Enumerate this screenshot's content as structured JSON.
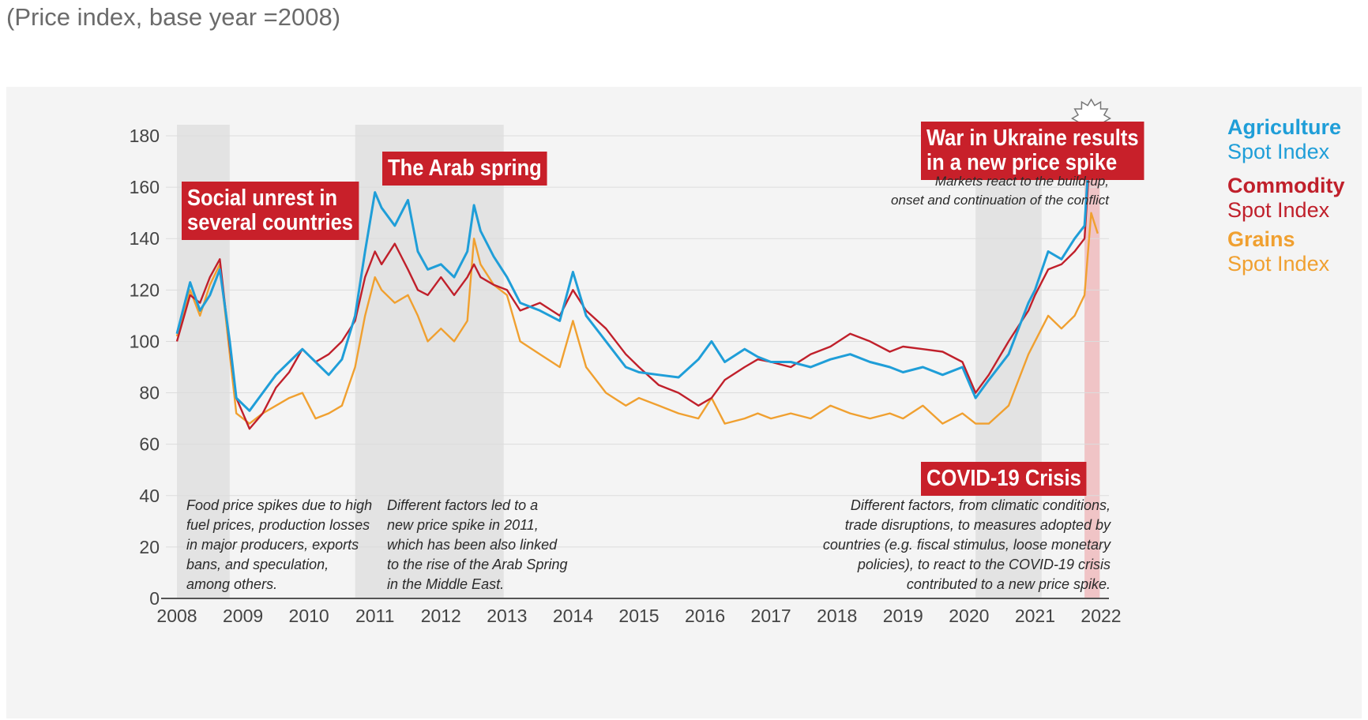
{
  "subtitle": "(Price index, base year =2008)",
  "colors": {
    "agriculture": "#1f9ed8",
    "commodity": "#c0202b",
    "grains": "#f0a030",
    "shade": "#e3e3e3",
    "war_shade": "#f0c4c6"
  },
  "boxes": {
    "social": "Social unrest in\nseveral countries",
    "arab": "The Arab spring",
    "war": "War in Ukraine results\nin a new price spike",
    "covid": "COVID-19 Crisis"
  },
  "notes": {
    "food": "Food price spikes due to high\nfuel prices, production losses\nin major producers, exports\nbans, and speculation,\namong others.",
    "arab": "Different factors led to a\nnew price spike in 2011,\nwhich has been also linked\nto the rise of the Arab Spring\nin the Middle East.",
    "war": "Markets react to the build-up,\nonset and continuation of the conflict",
    "covid": "Different factors, from climatic conditions,\ntrade disruptions, to measures adopted by\ncountries (e.g. fiscal stimulus, loose monetary\npolicies), to react to the COVID-19 crisis\ncontributed to a new price spike."
  },
  "legend": {
    "agriculture": [
      "Agriculture",
      "Spot Index"
    ],
    "commodity": [
      "Commodity",
      "Spot Index"
    ],
    "grains": [
      "Grains",
      "Spot Index"
    ]
  },
  "chart_data": {
    "type": "line",
    "title": "",
    "xlabel": "",
    "ylabel": "",
    "ylim": [
      0,
      180
    ],
    "yticks": [
      0,
      20,
      40,
      60,
      80,
      100,
      120,
      140,
      160,
      180
    ],
    "xticks": [
      "2008",
      "2009",
      "2010",
      "2011",
      "2012",
      "2013",
      "2014",
      "2015",
      "2016",
      "2017",
      "2018",
      "2019",
      "2020",
      "2021",
      "2022"
    ],
    "grid": "horizontal",
    "legend_position": "right",
    "shaded_periods": [
      {
        "label": "Social unrest in several countries",
        "start": 2008.0,
        "end": 2008.8
      },
      {
        "label": "The Arab spring",
        "start": 2010.7,
        "end": 2012.95
      },
      {
        "label": "COVID-19 Crisis",
        "start": 2020.1,
        "end": 2021.1
      },
      {
        "label": "War in Ukraine results in a new price spike",
        "start": 2021.75,
        "end": 2021.98
      }
    ],
    "series": [
      {
        "name": "Agriculture Spot Index",
        "x": [
          2008.0,
          2008.2,
          2008.35,
          2008.5,
          2008.65,
          2008.8,
          2008.9,
          2009.1,
          2009.3,
          2009.5,
          2009.7,
          2009.9,
          2010.1,
          2010.3,
          2010.5,
          2010.7,
          2010.85,
          2011.0,
          2011.1,
          2011.3,
          2011.5,
          2011.65,
          2011.8,
          2012.0,
          2012.2,
          2012.4,
          2012.5,
          2012.6,
          2012.8,
          2013.0,
          2013.2,
          2013.5,
          2013.8,
          2014.0,
          2014.2,
          2014.5,
          2014.8,
          2015.0,
          2015.3,
          2015.6,
          2015.9,
          2016.1,
          2016.3,
          2016.6,
          2016.8,
          2017.0,
          2017.3,
          2017.6,
          2017.9,
          2018.2,
          2018.5,
          2018.8,
          2019.0,
          2019.3,
          2019.6,
          2019.9,
          2020.1,
          2020.3,
          2020.6,
          2020.9,
          2021.0,
          2021.2,
          2021.4,
          2021.6,
          2021.75,
          2021.85,
          2021.95
        ],
        "values": [
          103,
          123,
          112,
          118,
          128,
          100,
          78,
          73,
          80,
          87,
          92,
          97,
          92,
          87,
          93,
          110,
          135,
          158,
          152,
          145,
          155,
          135,
          128,
          130,
          125,
          135,
          153,
          143,
          133,
          125,
          115,
          112,
          108,
          127,
          110,
          100,
          90,
          88,
          87,
          86,
          93,
          100,
          92,
          97,
          94,
          92,
          92,
          90,
          93,
          95,
          92,
          90,
          88,
          90,
          87,
          90,
          78,
          85,
          95,
          115,
          120,
          135,
          132,
          140,
          145,
          185,
          170
        ]
      },
      {
        "name": "Commodity Spot Index",
        "x": [
          2008.0,
          2008.2,
          2008.35,
          2008.5,
          2008.65,
          2008.8,
          2008.9,
          2009.1,
          2009.3,
          2009.5,
          2009.7,
          2009.9,
          2010.1,
          2010.3,
          2010.5,
          2010.7,
          2010.85,
          2011.0,
          2011.1,
          2011.3,
          2011.5,
          2011.65,
          2011.8,
          2012.0,
          2012.2,
          2012.4,
          2012.5,
          2012.6,
          2012.8,
          2013.0,
          2013.2,
          2013.5,
          2013.8,
          2014.0,
          2014.2,
          2014.5,
          2014.8,
          2015.0,
          2015.3,
          2015.6,
          2015.9,
          2016.1,
          2016.3,
          2016.6,
          2016.8,
          2017.0,
          2017.3,
          2017.6,
          2017.9,
          2018.2,
          2018.5,
          2018.8,
          2019.0,
          2019.3,
          2019.6,
          2019.9,
          2020.1,
          2020.3,
          2020.6,
          2020.9,
          2021.0,
          2021.2,
          2021.4,
          2021.6,
          2021.75,
          2021.85,
          2021.95
        ],
        "values": [
          100,
          118,
          115,
          125,
          132,
          98,
          78,
          66,
          72,
          82,
          88,
          97,
          92,
          95,
          100,
          108,
          125,
          135,
          130,
          138,
          128,
          120,
          118,
          125,
          118,
          125,
          130,
          125,
          122,
          120,
          112,
          115,
          110,
          120,
          112,
          105,
          95,
          90,
          83,
          80,
          75,
          78,
          85,
          90,
          93,
          92,
          90,
          95,
          98,
          103,
          100,
          96,
          98,
          97,
          96,
          92,
          80,
          87,
          100,
          112,
          118,
          128,
          130,
          135,
          140,
          180,
          172
        ]
      },
      {
        "name": "Grains Spot Index",
        "x": [
          2008.0,
          2008.2,
          2008.35,
          2008.5,
          2008.65,
          2008.8,
          2008.9,
          2009.1,
          2009.3,
          2009.5,
          2009.7,
          2009.9,
          2010.1,
          2010.3,
          2010.5,
          2010.7,
          2010.85,
          2011.0,
          2011.1,
          2011.3,
          2011.5,
          2011.65,
          2011.8,
          2012.0,
          2012.2,
          2012.4,
          2012.5,
          2012.6,
          2012.8,
          2013.0,
          2013.2,
          2013.5,
          2013.8,
          2014.0,
          2014.2,
          2014.5,
          2014.8,
          2015.0,
          2015.3,
          2015.6,
          2015.9,
          2016.1,
          2016.3,
          2016.6,
          2016.8,
          2017.0,
          2017.3,
          2017.6,
          2017.9,
          2018.2,
          2018.5,
          2018.8,
          2019.0,
          2019.3,
          2019.6,
          2019.9,
          2020.1,
          2020.3,
          2020.6,
          2020.9,
          2021.0,
          2021.2,
          2021.4,
          2021.6,
          2021.75,
          2021.85,
          2021.95
        ],
        "values": [
          102,
          120,
          110,
          122,
          130,
          95,
          72,
          68,
          72,
          75,
          78,
          80,
          70,
          72,
          75,
          90,
          110,
          125,
          120,
          115,
          118,
          110,
          100,
          105,
          100,
          108,
          140,
          130,
          122,
          118,
          100,
          95,
          90,
          108,
          90,
          80,
          75,
          78,
          75,
          72,
          70,
          78,
          68,
          70,
          72,
          70,
          72,
          70,
          75,
          72,
          70,
          72,
          70,
          75,
          68,
          72,
          68,
          68,
          75,
          95,
          100,
          110,
          105,
          110,
          118,
          150,
          142
        ]
      }
    ]
  }
}
